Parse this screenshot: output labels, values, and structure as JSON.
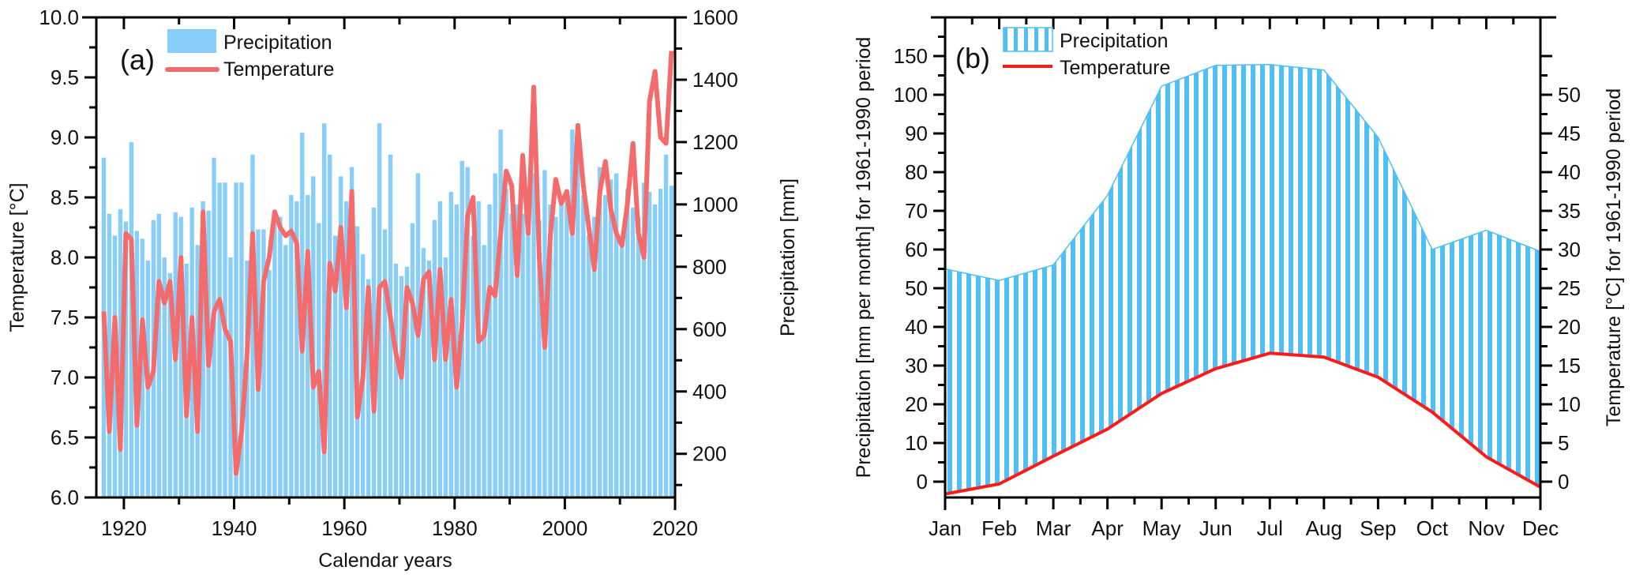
{
  "chart_data": [
    {
      "panel": "(a)",
      "type": "bar+line",
      "title": "",
      "xlabel": "Calendar years",
      "ylabel_left": "Temperature [°C]",
      "ylabel_right": "Precipitation [mm]",
      "xlim": [
        1915,
        2020
      ],
      "ylim_left": [
        6.0,
        10.0
      ],
      "ylim_right": [
        60,
        1600
      ],
      "x_ticks": [
        1920,
        1940,
        1960,
        1980,
        2000,
        2020
      ],
      "x_tick_labels": [
        "1920",
        "1940",
        "1960",
        "1980",
        "2000",
        "2020"
      ],
      "y_left_ticks": [
        "6.0",
        "6.5",
        "7.0",
        "7.5",
        "8.0",
        "8.5",
        "9.0",
        "9.5",
        "10.0"
      ],
      "y_right_ticks": [
        "200",
        "400",
        "600",
        "800",
        "1000",
        "1200",
        "1400",
        "1600"
      ],
      "legend": {
        "position": "top-left",
        "entries": [
          "Precipitation",
          "Temperature"
        ]
      },
      "colors": {
        "precipitation": "#87cefa",
        "temperature": "#f46b6b"
      },
      "years": [
        1916,
        1917,
        1918,
        1919,
        1920,
        1921,
        1922,
        1923,
        1924,
        1925,
        1926,
        1927,
        1928,
        1929,
        1930,
        1931,
        1932,
        1933,
        1934,
        1935,
        1936,
        1937,
        1938,
        1939,
        1940,
        1941,
        1942,
        1943,
        1944,
        1945,
        1946,
        1947,
        1948,
        1949,
        1950,
        1951,
        1952,
        1953,
        1954,
        1955,
        1956,
        1957,
        1958,
        1959,
        1960,
        1961,
        1962,
        1963,
        1964,
        1965,
        1966,
        1967,
        1968,
        1969,
        1970,
        1971,
        1972,
        1973,
        1974,
        1975,
        1976,
        1977,
        1978,
        1979,
        1980,
        1981,
        1982,
        1983,
        1984,
        1985,
        1986,
        1987,
        1988,
        1989,
        1990,
        1991,
        1992,
        1993,
        1994,
        1995,
        1996,
        1997,
        1998,
        1999,
        2000,
        2001,
        2002,
        2003,
        2004,
        2005,
        2006,
        2007,
        2008,
        2009,
        2010,
        2011,
        2012,
        2013,
        2014,
        2015,
        2016,
        2017,
        2018,
        2019
      ],
      "series": [
        {
          "name": "Precipitation",
          "axis": "right",
          "type": "bar",
          "values": [
            1150,
            970,
            900,
            985,
            945,
            1200,
            915,
            890,
            820,
            950,
            970,
            830,
            780,
            975,
            960,
            810,
            990,
            870,
            1010,
            980,
            1150,
            1070,
            1070,
            830,
            1070,
            1070,
            820,
            1160,
            920,
            920,
            790,
            940,
            960,
            870,
            1030,
            1010,
            1230,
            1030,
            1090,
            940,
            1260,
            1160,
            900,
            1090,
            1010,
            1120,
            930,
            840,
            760,
            990,
            1260,
            920,
            1160,
            810,
            770,
            800,
            940,
            1100,
            860,
            820,
            950,
            1010,
            830,
            1040,
            1000,
            1140,
            1120,
            900,
            1010,
            870,
            1000,
            1100,
            1240,
            1050,
            970,
            1000,
            970,
            1050,
            1100,
            950,
            1110,
            1000,
            960,
            1000,
            1020,
            1240,
            1170,
            1030,
            900,
            960,
            1120,
            1030,
            1080,
            1100,
            870,
            1050,
            990,
            960,
            1070,
            1040,
            1000,
            1050,
            1160,
            1060
          ]
        },
        {
          "name": "Temperature",
          "axis": "left",
          "type": "line",
          "values": [
            7.55,
            6.55,
            7.5,
            6.4,
            8.2,
            8.15,
            6.6,
            7.48,
            6.92,
            7.05,
            7.8,
            7.62,
            7.8,
            7.15,
            8.0,
            6.68,
            7.5,
            6.55,
            8.38,
            7.1,
            7.55,
            7.65,
            7.4,
            7.3,
            6.2,
            6.55,
            7.2,
            8.2,
            6.9,
            7.8,
            8.0,
            8.38,
            8.25,
            8.18,
            8.22,
            8.12,
            7.22,
            8.05,
            6.92,
            7.05,
            6.38,
            7.95,
            7.72,
            8.25,
            7.58,
            8.55,
            6.67,
            7.0,
            7.75,
            6.72,
            7.75,
            7.8,
            7.5,
            7.2,
            7.0,
            7.75,
            7.62,
            7.35,
            7.82,
            7.88,
            7.15,
            7.9,
            7.15,
            7.65,
            6.92,
            7.45,
            8.35,
            8.5,
            7.3,
            7.35,
            7.75,
            7.68,
            8.2,
            8.72,
            8.6,
            7.85,
            8.85,
            8.2,
            9.42,
            8.0,
            7.25,
            8.18,
            8.65,
            8.45,
            8.55,
            8.2,
            9.1,
            8.6,
            8.25,
            7.9,
            8.55,
            8.8,
            8.4,
            8.2,
            8.1,
            8.45,
            8.95,
            8.2,
            8.0,
            9.3,
            9.55,
            9.0,
            8.95,
            9.72
          ]
        }
      ]
    },
    {
      "panel": "(b)",
      "type": "area+line",
      "title": "",
      "xlabel": "",
      "ylabel_left": "Precipitation [mm per month] for 1961-1990 period",
      "ylabel_right": "Temperature [°C] for 1961-1990 period",
      "categories": [
        "Jan",
        "Feb",
        "Mar",
        "Apr",
        "May",
        "Jun",
        "Jul",
        "Aug",
        "Sep",
        "Oct",
        "Nov",
        "Dec"
      ],
      "ylim_left": [
        -4,
        150
      ],
      "ylim_right": [
        -2,
        50
      ],
      "y_left_ticks": [
        "0",
        "10",
        "20",
        "30",
        "40",
        "50",
        "60",
        "70",
        "80",
        "90",
        "100",
        "150"
      ],
      "y_right_ticks": [
        "0",
        "5",
        "10",
        "15",
        "20",
        "25",
        "30",
        "35",
        "40",
        "45",
        "50"
      ],
      "axis_note": "left axis compressed above 100 mm",
      "legend": {
        "position": "top-left",
        "entries": [
          "Precipitation",
          "Temperature"
        ]
      },
      "colors": {
        "precipitation": "#4fbff5",
        "temperature": "#ff1a1a"
      },
      "series": [
        {
          "name": "Precipitation",
          "axis": "left",
          "values": [
            55,
            52,
            56,
            74,
            111,
            138,
            139,
            132,
            89,
            60,
            65,
            59.5
          ]
        },
        {
          "name": "Temperature",
          "axis": "right",
          "values": [
            -1.6,
            -0.3,
            3.3,
            6.8,
            11.4,
            14.6,
            16.6,
            16.1,
            13.5,
            9.0,
            3.2,
            -0.7
          ]
        }
      ]
    }
  ],
  "labels": {
    "panel_a": "(a)",
    "panel_b": "(b)",
    "legend_precip": "Precipitation",
    "legend_temp": "Temperature",
    "a_xlabel": "Calendar years",
    "a_ylabel_left": "Temperature [°C]",
    "a_ylabel_right": "Precipitation [mm]",
    "b_ylabel_left": "Precipitation [mm per month] for 1961-1990 period",
    "b_ylabel_right": "Temperature [°C] for 1961-1990 period"
  }
}
